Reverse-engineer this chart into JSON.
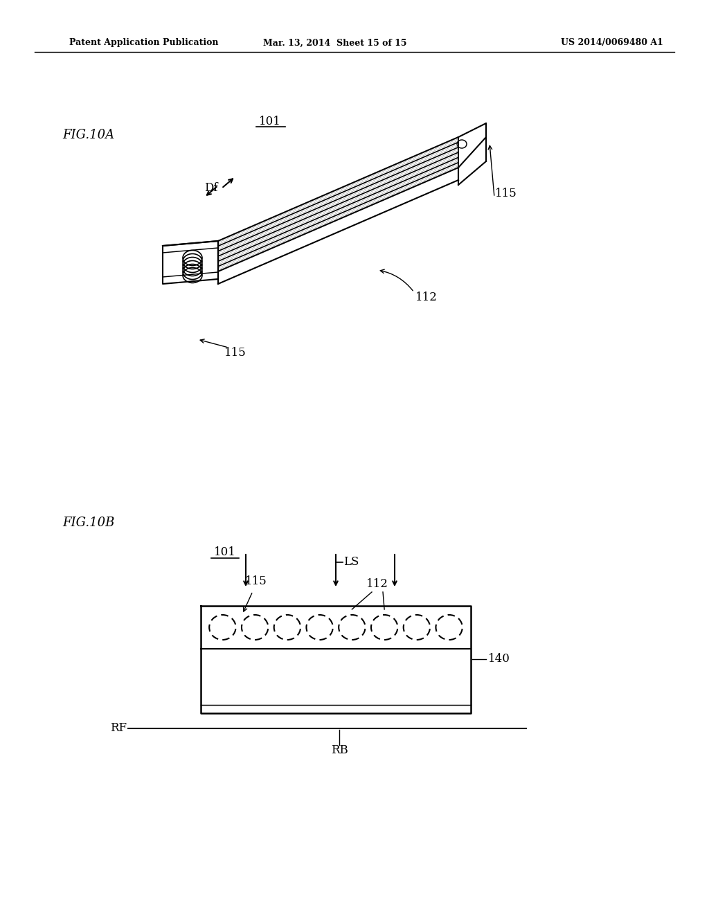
{
  "bg_color": "#ffffff",
  "line_color": "#000000",
  "header_left": "Patent Application Publication",
  "header_mid": "Mar. 13, 2014  Sheet 15 of 15",
  "header_right": "US 2014/0069480 A1",
  "fig10a_label": "FIG.10A",
  "fig10b_label": "FIG.10B",
  "label_101_a": "101",
  "label_115_right": "115",
  "label_115_bottom": "115",
  "label_112": "112",
  "label_Df": "Df",
  "label_101_b": "101",
  "label_LS": "LS",
  "label_115_b": "115",
  "label_112_b": "112",
  "label_140": "140",
  "label_RF": "RF",
  "label_RB": "RB"
}
